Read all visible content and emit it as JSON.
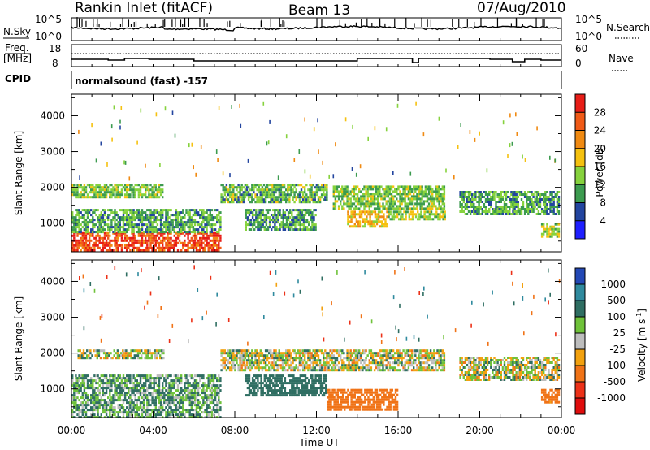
{
  "header": {
    "station": "Rankin Inlet (fitACF)",
    "beam": "Beam 13",
    "date": "07/Aug/2010"
  },
  "noise_panel": {
    "left_label": "N.Sky",
    "left_ticks": [
      "10^5",
      "10^0"
    ],
    "right_ticks": [
      "10^5",
      "10^0"
    ],
    "right_label": "N.Search"
  },
  "freq_panel": {
    "left_label_top": "Freq.",
    "left_label_unit": "[MHz]",
    "left_ticks": [
      "18",
      "8"
    ],
    "right_ticks": [
      "60",
      "0"
    ],
    "right_label": "Nave"
  },
  "cpid": {
    "label": "CPID",
    "value": "normalsound (fast) -157"
  },
  "axes": {
    "ylabel": "Slant Range [km]",
    "yticks": [
      "1000",
      "2000",
      "3000",
      "4000"
    ],
    "xticks": [
      "00:00",
      "04:00",
      "08:00",
      "12:00",
      "16:00",
      "20:00",
      "00:00"
    ],
    "xlabel": "Time UT"
  },
  "power_scale": {
    "label": "Power [dB]",
    "ticks": [
      "4",
      "8",
      "12",
      "16",
      "20",
      "24",
      "28"
    ],
    "colors": [
      "#1f1fff",
      "#23459f",
      "#3c9b4f",
      "#86d23d",
      "#f5c10f",
      "#f08a12",
      "#f05a17",
      "#e81d17"
    ]
  },
  "velocity_scale": {
    "label": "Velocity [m s",
    "label_sup": "-1",
    "label_end": "]",
    "ticks": [
      "1000",
      "500",
      "100",
      "25",
      "-25",
      "-100",
      "-500",
      "-1000"
    ],
    "colors": [
      "#2348b5",
      "#2f8a9e",
      "#2f6e62",
      "#6fc23a",
      "#bdbdbd",
      "#f2a10f",
      "#f07317",
      "#ec3118",
      "#e00d0d"
    ]
  },
  "chart_data": [
    {
      "type": "heatmap",
      "title": "Power",
      "ylabel": "Slant Range [km]",
      "xlabel": "Time UT",
      "xlim": [
        0,
        24
      ],
      "ylim": [
        200,
        4600
      ],
      "colorbar": "Power [dB]",
      "clim": [
        0,
        30
      ],
      "regions": [
        {
          "t0": 0.0,
          "t1": 7.3,
          "r0": 200,
          "r1": 750,
          "value": 27
        },
        {
          "t0": 0.0,
          "t1": 7.3,
          "r0": 750,
          "r1": 1400,
          "value": 11
        },
        {
          "t0": 0.0,
          "t1": 4.5,
          "r0": 1700,
          "r1": 2100,
          "value": 13
        },
        {
          "t0": 7.3,
          "t1": 12.5,
          "r0": 1600,
          "r1": 2100,
          "value": 12
        },
        {
          "t0": 8.5,
          "t1": 12.0,
          "r0": 800,
          "r1": 1400,
          "value": 10
        },
        {
          "t0": 12.8,
          "t1": 18.3,
          "r0": 1400,
          "r1": 2050,
          "value": 13
        },
        {
          "t0": 13.5,
          "t1": 15.5,
          "r0": 900,
          "r1": 1350,
          "value": 19
        },
        {
          "t0": 15.5,
          "t1": 18.3,
          "r0": 1100,
          "r1": 1350,
          "value": 14
        },
        {
          "t0": 19.0,
          "t1": 23.9,
          "r0": 1250,
          "r1": 1900,
          "value": 11
        },
        {
          "t0": 23.0,
          "t1": 23.9,
          "r0": 600,
          "r1": 1000,
          "value": 15
        }
      ]
    },
    {
      "type": "heatmap",
      "title": "Velocity",
      "ylabel": "Slant Range [km]",
      "xlabel": "Time UT",
      "xlim": [
        0,
        24
      ],
      "ylim": [
        200,
        4600
      ],
      "colorbar": "Velocity [m s-1]",
      "clim": [
        -1000,
        1000
      ],
      "regions": [
        {
          "t0": 0.0,
          "t1": 7.3,
          "r0": 200,
          "r1": 1400,
          "value": 100
        },
        {
          "t0": 0.3,
          "t1": 4.5,
          "r0": 1850,
          "r1": 2100,
          "value": 0
        },
        {
          "t0": 7.3,
          "t1": 18.3,
          "r0": 1500,
          "r1": 2100,
          "value": 0
        },
        {
          "t0": 8.5,
          "t1": 12.5,
          "r0": 800,
          "r1": 1400,
          "value": 300
        },
        {
          "t0": 12.5,
          "t1": 16.0,
          "r0": 400,
          "r1": 1000,
          "value": -300
        },
        {
          "t0": 19.0,
          "t1": 23.9,
          "r0": 1250,
          "r1": 1900,
          "value": 0
        },
        {
          "t0": 23.0,
          "t1": 23.9,
          "r0": 600,
          "r1": 1000,
          "value": -200
        }
      ]
    }
  ]
}
